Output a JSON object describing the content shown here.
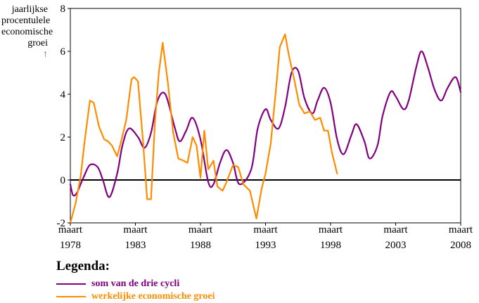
{
  "chart_data": {
    "type": "line",
    "ylabel": [
      "jaarlijkse",
      "procentulele",
      "economische",
      "groei"
    ],
    "ylabel_arrow": "↑",
    "ylim": [
      -2,
      8
    ],
    "yticks": [
      "-2",
      "0",
      "2",
      "4",
      "6",
      "8"
    ],
    "xlim": [
      1978,
      2008
    ],
    "xticks": [
      {
        "value": 1978,
        "top": "maart",
        "bottom": "1978"
      },
      {
        "value": 1983,
        "top": "maart",
        "bottom": "1983"
      },
      {
        "value": 1988,
        "top": "maart",
        "bottom": "1988"
      },
      {
        "value": 1993,
        "top": "maart",
        "bottom": "1993"
      },
      {
        "value": 1998,
        "top": "maart",
        "bottom": "1998"
      },
      {
        "value": 2003,
        "top": "maart",
        "bottom": "2003"
      },
      {
        "value": 2008,
        "top": "maart",
        "bottom": "2008"
      }
    ],
    "grid": false,
    "legend_placement": "bottom-left",
    "series": [
      {
        "name": "som van de drie cycli",
        "color": "#800080",
        "smooth": true,
        "x": [
          1978.0,
          1978.2,
          1978.5,
          1979.0,
          1979.5,
          1980.1,
          1980.5,
          1981.0,
          1981.6,
          1982.0,
          1982.5,
          1983.2,
          1983.7,
          1984.2,
          1984.7,
          1985.3,
          1986.0,
          1986.4,
          1986.9,
          1987.4,
          1988.0,
          1988.6,
          1989.0,
          1989.5,
          1990.0,
          1990.5,
          1991.0,
          1991.9,
          1992.4,
          1993.0,
          1993.4,
          1994.0,
          1994.5,
          1995.0,
          1995.5,
          1996.0,
          1996.6,
          1997.0,
          1997.5,
          1998.0,
          1998.5,
          1999.0,
          1999.6,
          2000.0,
          2000.6,
          2001.0,
          2001.6,
          2002.0,
          2002.6,
          2003.0,
          2003.6,
          2004.0,
          2004.6,
          2005.0,
          2005.5,
          2006.0,
          2006.5,
          2007.0,
          2007.6,
          2008.0
        ],
        "values": [
          -0.2,
          -0.7,
          -0.6,
          0.1,
          0.7,
          0.6,
          0.0,
          -0.8,
          0.3,
          1.6,
          2.4,
          2.0,
          1.5,
          2.2,
          3.7,
          4.0,
          2.5,
          1.8,
          2.3,
          2.9,
          1.9,
          -0.1,
          -0.2,
          0.8,
          1.4,
          0.8,
          -0.2,
          0.5,
          2.4,
          3.3,
          2.8,
          2.4,
          3.4,
          5.0,
          5.1,
          3.8,
          3.1,
          3.7,
          4.3,
          3.6,
          1.9,
          1.2,
          2.1,
          2.6,
          1.8,
          1.0,
          1.6,
          3.0,
          4.1,
          3.9,
          3.3,
          3.7,
          5.3,
          6.0,
          5.2,
          4.2,
          3.7,
          4.3,
          4.8,
          4.1
        ]
      },
      {
        "name": "werkelijke economische groei",
        "color": "#ff8c00",
        "smooth": false,
        "x": [
          1978.0,
          1978.4,
          1978.8,
          1979.1,
          1979.5,
          1979.8,
          1980.2,
          1980.6,
          1980.9,
          1981.2,
          1981.6,
          1981.9,
          1982.3,
          1982.7,
          1982.9,
          1983.2,
          1983.6,
          1983.9,
          1984.2,
          1984.5,
          1984.8,
          1985.1,
          1985.5,
          1985.9,
          1986.3,
          1986.7,
          1987.0,
          1987.4,
          1987.7,
          1988.0,
          1988.3,
          1988.6,
          1989.0,
          1989.3,
          1989.7,
          1990.0,
          1990.5,
          1990.9,
          1991.3,
          1991.8,
          1992.3,
          1992.7,
          1993.0,
          1993.4,
          1993.8,
          1994.1,
          1994.5,
          1994.8,
          1995.2,
          1995.6,
          1996.0,
          1996.4,
          1996.8,
          1997.2,
          1997.5,
          1997.8,
          1998.1,
          1998.5
        ],
        "values": [
          -2.0,
          -1.1,
          0.2,
          1.8,
          3.7,
          3.6,
          2.5,
          1.9,
          1.8,
          1.6,
          1.1,
          1.8,
          2.8,
          4.7,
          4.8,
          4.6,
          1.7,
          -0.9,
          -0.9,
          2.7,
          5.0,
          6.4,
          4.5,
          2.2,
          1.0,
          0.9,
          0.8,
          2.0,
          1.6,
          0.1,
          2.3,
          0.5,
          0.9,
          -0.3,
          -0.5,
          -0.1,
          0.7,
          0.6,
          -0.2,
          -0.5,
          -1.8,
          -0.4,
          0.3,
          1.7,
          4.2,
          6.2,
          6.8,
          5.8,
          4.7,
          3.5,
          3.1,
          3.2,
          2.8,
          2.9,
          2.3,
          2.3,
          1.3,
          0.3
        ]
      }
    ]
  },
  "legend": {
    "title": "Legenda:",
    "items": [
      {
        "label": "som van de drie cycli",
        "color": "#800080"
      },
      {
        "label": "werkelijke economische groei",
        "color": "#ff8c00"
      }
    ]
  }
}
